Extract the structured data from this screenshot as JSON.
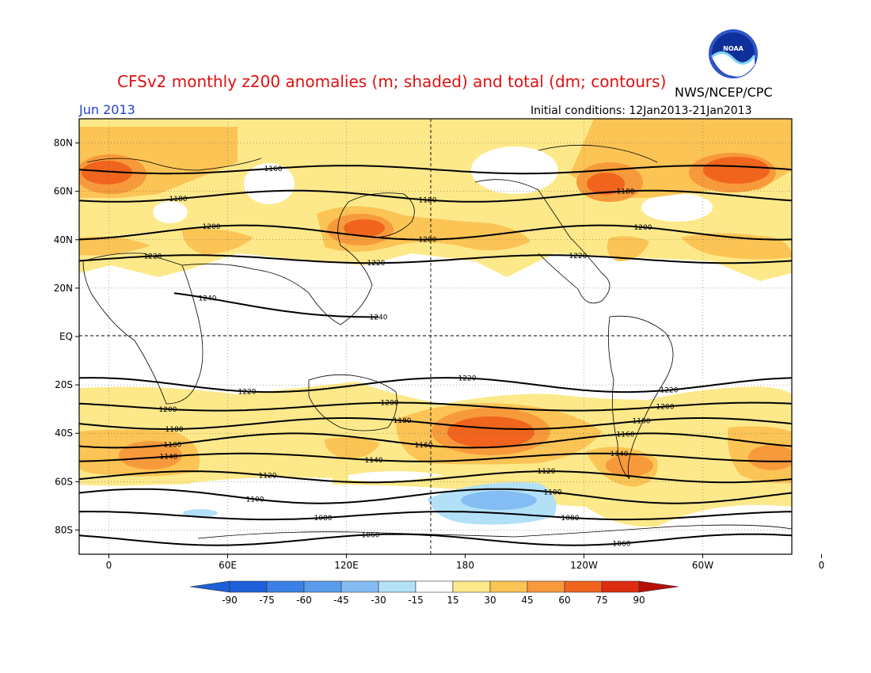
{
  "header": {
    "title": "CFSv2 monthly z200 anomalies (m; shaded) and total (dm; contours)",
    "agency": "NWS/NCEP/CPC",
    "month": "Jun 2013",
    "initial_conditions": "Initial conditions: 12Jan2013-21Jan2013",
    "logo_text": "NOAA"
  },
  "axes": {
    "lat_labels": [
      "80N",
      "60N",
      "40N",
      "20N",
      "EQ",
      "20S",
      "40S",
      "60S",
      "80S"
    ],
    "lon_labels": [
      "0",
      "60E",
      "120E",
      "180",
      "120W",
      "60W",
      "0"
    ]
  },
  "colorbar": {
    "labels": [
      "-90",
      "-75",
      "-60",
      "-45",
      "-30",
      "-15",
      "15",
      "30",
      "45",
      "60",
      "75",
      "90"
    ],
    "colors": [
      "#1c5fd8",
      "#3b80e4",
      "#5a9cec",
      "#84bdf3",
      "#b2e0f7",
      "#ffffff",
      "#fde98a",
      "#fcc455",
      "#f79a3c",
      "#f0641e",
      "#dc2d10",
      "#b70e06"
    ]
  },
  "chart_data": {
    "type": "heatmap",
    "title": "CFSv2 monthly z200 anomalies (m; shaded) and total (dm; contours)",
    "contour_lines": [
      {
        "value": 1160,
        "label": "1160",
        "lat": 69
      },
      {
        "value": 1180,
        "label": "1180",
        "lat": 58
      },
      {
        "value": 1200,
        "label": "1200",
        "lat": 43
      },
      {
        "value": 1220,
        "label": "1220",
        "lat": 32
      },
      {
        "value": 1240,
        "label": "1240",
        "lat": 16
      },
      {
        "value": 1220,
        "label": "1220",
        "lat": -20
      },
      {
        "value": 1200,
        "label": "1200",
        "lat": -29
      },
      {
        "value": 1180,
        "label": "1180",
        "lat": -36
      },
      {
        "value": 1160,
        "label": "1160",
        "lat": -43
      },
      {
        "value": 1140,
        "label": "1140",
        "lat": -50
      },
      {
        "value": 1120,
        "label": "1120",
        "lat": -58
      },
      {
        "value": 1100,
        "label": "1100",
        "lat": -66
      },
      {
        "value": 1080,
        "label": "1080",
        "lat": -74
      },
      {
        "value": 1060,
        "label": "1060",
        "lat": -84
      }
    ],
    "anomaly_levels": [
      -90,
      -75,
      -60,
      -45,
      -30,
      -15,
      15,
      30,
      45,
      60,
      75,
      90
    ]
  }
}
